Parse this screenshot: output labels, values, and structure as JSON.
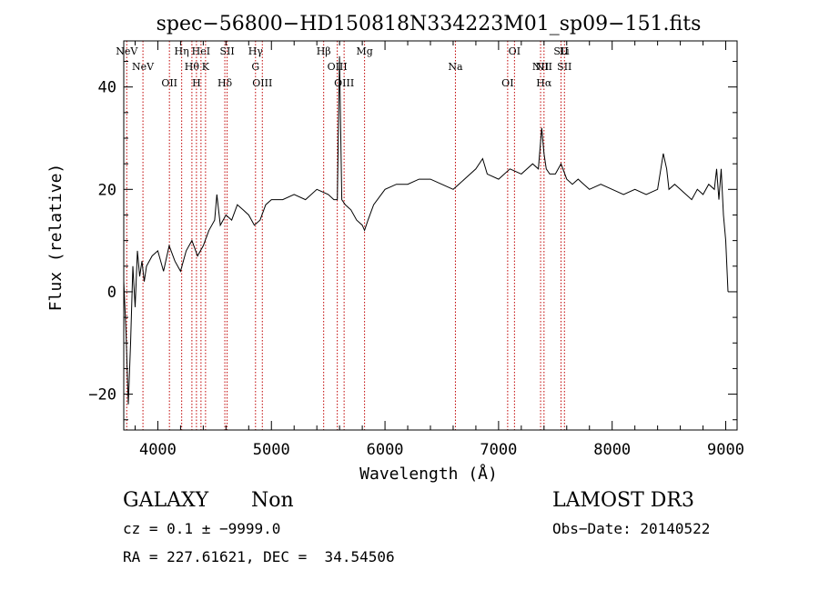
{
  "chart_data": {
    "type": "line",
    "title": "spec−56800−HD150818N334223M01_sp09−151.fits",
    "xlabel": "Wavelength (Å)",
    "ylabel": "Flux (relative)",
    "xlim": [
      3700,
      9100
    ],
    "ylim": [
      -27,
      49
    ],
    "x_ticks": [
      4000,
      5000,
      6000,
      7000,
      8000,
      9000
    ],
    "y_ticks": [
      -20,
      0,
      20,
      40
    ],
    "y_tick_labels": [
      "−20",
      "0",
      "20",
      "40"
    ],
    "grid": false,
    "series": [
      {
        "x": [
          3700,
          3720,
          3740,
          3760,
          3780,
          3800,
          3820,
          3840,
          3860,
          3880,
          3900,
          3950,
          4000,
          4050,
          4100,
          4150,
          4200,
          4250,
          4300,
          4350,
          4400,
          4450,
          4500,
          4520,
          4550,
          4600,
          4650,
          4700,
          4750,
          4800,
          4850,
          4900,
          4950,
          5000,
          5100,
          5200,
          5300,
          5400,
          5500,
          5550,
          5580,
          5600,
          5620,
          5650,
          5700,
          5750,
          5800,
          5820,
          5850,
          5900,
          6000,
          6100,
          6200,
          6300,
          6400,
          6500,
          6600,
          6650,
          6700,
          6800,
          6860,
          6900,
          7000,
          7100,
          7200,
          7300,
          7350,
          7380,
          7400,
          7420,
          7450,
          7500,
          7550,
          7600,
          7650,
          7700,
          7750,
          7800,
          7900,
          8000,
          8100,
          8200,
          8300,
          8400,
          8450,
          8480,
          8500,
          8550,
          8600,
          8650,
          8700,
          8750,
          8800,
          8850,
          8900,
          8920,
          8940,
          8960,
          8980,
          9000,
          9020
        ],
        "y": [
          2,
          -8,
          -22,
          -10,
          5,
          -3,
          8,
          3,
          6,
          2,
          5,
          7,
          8,
          4,
          9,
          6,
          4,
          8,
          10,
          7,
          9,
          12,
          14,
          19,
          13,
          15,
          14,
          17,
          16,
          15,
          13,
          14,
          17,
          18,
          18,
          19,
          18,
          20,
          19,
          18,
          18,
          46,
          18,
          17,
          16,
          14,
          13,
          12,
          14,
          17,
          20,
          21,
          21,
          22,
          22,
          21,
          20,
          21,
          22,
          24,
          26,
          23,
          22,
          24,
          23,
          25,
          24,
          32,
          27,
          24,
          23,
          23,
          25,
          22,
          21,
          22,
          21,
          20,
          21,
          20,
          19,
          20,
          19,
          20,
          27,
          24,
          20,
          21,
          20,
          19,
          18,
          20,
          19,
          21,
          20,
          24,
          18,
          24,
          15,
          10,
          0
        ]
      }
    ],
    "line_markers": [
      {
        "wavelength": 3726,
        "labels": [
          "NeV"
        ]
      },
      {
        "wavelength": 3869,
        "labels": [
          "NeV"
        ]
      },
      {
        "wavelength": 4102,
        "labels": [
          "OII"
        ]
      },
      {
        "wavelength": 4210,
        "labels": [
          "Hη"
        ]
      },
      {
        "wavelength": 4300,
        "labels": [
          "Hθ"
        ]
      },
      {
        "wavelength": 4340,
        "labels": [
          "H"
        ]
      },
      {
        "wavelength": 4380,
        "labels": [
          "HeI"
        ]
      },
      {
        "wavelength": 4420,
        "labels": [
          "K"
        ]
      },
      {
        "wavelength": 4590,
        "labels": [
          "Hδ"
        ]
      },
      {
        "wavelength": 4610,
        "labels": [
          "SII"
        ]
      },
      {
        "wavelength": 4860,
        "labels": [
          "G",
          "Hγ"
        ]
      },
      {
        "wavelength": 4920,
        "labels": [
          "OIII"
        ]
      },
      {
        "wavelength": 5460,
        "labels": [
          "Hβ"
        ]
      },
      {
        "wavelength": 5580,
        "labels": [
          "OIII"
        ]
      },
      {
        "wavelength": 5640,
        "labels": [
          "OIII"
        ]
      },
      {
        "wavelength": 5820,
        "labels": [
          "Mg"
        ]
      },
      {
        "wavelength": 6620,
        "labels": [
          "Na"
        ]
      },
      {
        "wavelength": 7080,
        "labels": [
          "OI"
        ]
      },
      {
        "wavelength": 7140,
        "labels": [
          "OI"
        ]
      },
      {
        "wavelength": 7370,
        "labels": [
          "NII"
        ]
      },
      {
        "wavelength": 7400,
        "labels": [
          "Hα",
          "NII"
        ]
      },
      {
        "wavelength": 7550,
        "labels": [
          "SII"
        ]
      },
      {
        "wavelength": 7580,
        "labels": [
          "SII",
          "Li"
        ]
      }
    ]
  },
  "footer": {
    "class_label": "GALAXY",
    "subclass_label": "Non",
    "survey_label": "LAMOST DR3",
    "redshift_text": "cz = 0.1 ± −9999.0",
    "obs_date_text": "Obs−Date: 20140522",
    "coords_text": "RA = 227.61621, DEC =  34.54506"
  }
}
